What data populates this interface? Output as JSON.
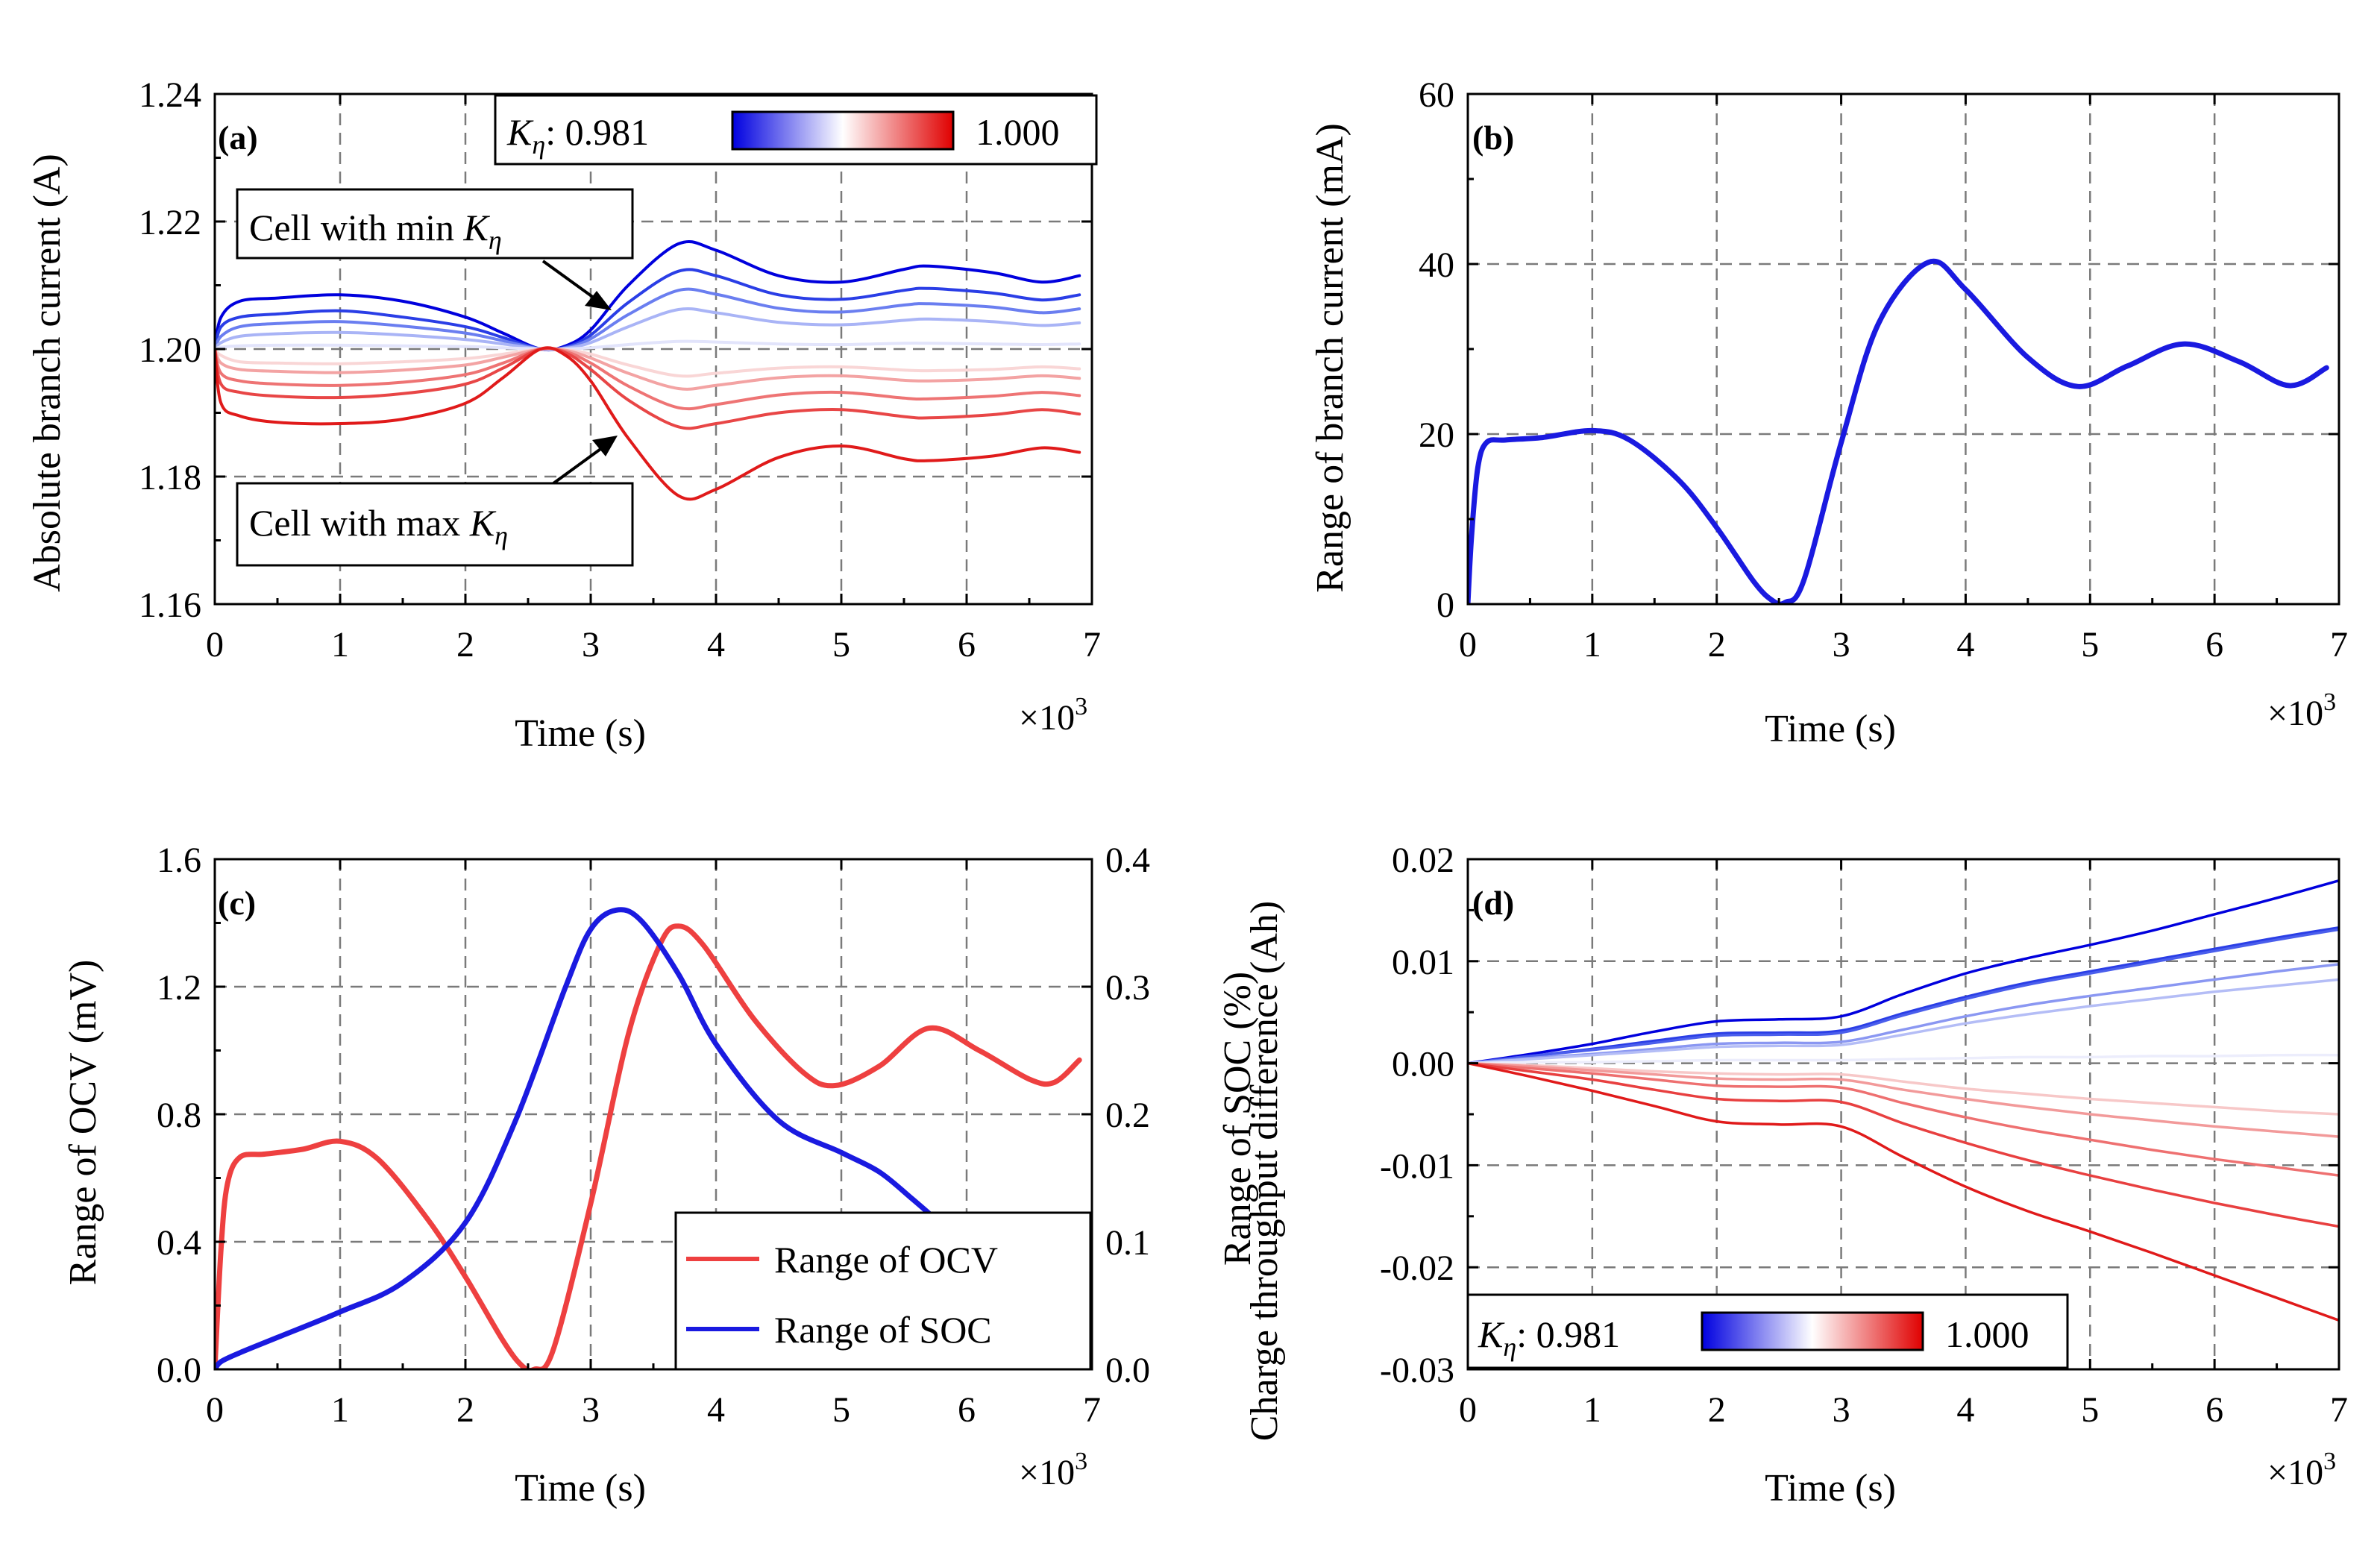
{
  "figure": {
    "panels": [
      {
        "id": "a",
        "tag": "(a)",
        "ylabel": "Absolute branch current (A)",
        "xlabel": "Time (s)",
        "xmult": "×10",
        "xmult_exp": "3",
        "xticks": [
          "0",
          "1",
          "2",
          "3",
          "4",
          "5",
          "6",
          "7"
        ],
        "yticks": [
          "1.16",
          "1.18",
          "1.20",
          "1.22",
          "1.24"
        ],
        "colorbar": {
          "symbol": "K",
          "subscript": "η",
          "min_label": ": 0.981",
          "max_label": "1.000"
        },
        "annotations": [
          {
            "text": "Cell with min ",
            "symbol": "K",
            "subscript": "η"
          },
          {
            "text": "Cell with max ",
            "symbol": "K",
            "subscript": "η"
          }
        ]
      },
      {
        "id": "b",
        "tag": "(b)",
        "ylabel": "Range of branch current (mA)",
        "xlabel": "Time (s)",
        "xmult": "×10",
        "xmult_exp": "3",
        "xticks": [
          "0",
          "1",
          "2",
          "3",
          "4",
          "5",
          "6",
          "7"
        ],
        "yticks": [
          "0",
          "20",
          "40",
          "60"
        ]
      },
      {
        "id": "c",
        "tag": "(c)",
        "ylabel": "Range of OCV (mV)",
        "ylabel_right": "Range of SOC (%)",
        "xlabel": "Time (s)",
        "xmult": "×10",
        "xmult_exp": "3",
        "xticks": [
          "0",
          "1",
          "2",
          "3",
          "4",
          "5",
          "6",
          "7"
        ],
        "yticks": [
          "0.0",
          "0.4",
          "0.8",
          "1.2",
          "1.6"
        ],
        "yticks_right": [
          "0.0",
          "0.1",
          "0.2",
          "0.3",
          "0.4"
        ],
        "legend": [
          "Range of OCV",
          "Range of SOC"
        ]
      },
      {
        "id": "d",
        "tag": "(d)",
        "ylabel": "Charge throughput difference (Ah)",
        "xlabel": "Time (s)",
        "xmult": "×10",
        "xmult_exp": "3",
        "xticks": [
          "0",
          "1",
          "2",
          "3",
          "4",
          "5",
          "6",
          "7"
        ],
        "yticks": [
          "-0.03",
          "-0.02",
          "-0.01",
          "0.00",
          "0.01",
          "0.02"
        ],
        "colorbar": {
          "symbol": "K",
          "subscript": "η",
          "min_label": ": 0.981",
          "max_label": "1.000"
        }
      }
    ]
  },
  "chart_data": [
    {
      "panel": "a",
      "type": "line",
      "title": "",
      "xlabel": "Time (s)",
      "ylabel": "Absolute branch current (A)",
      "x_unit_multiplier": 1000,
      "xlim": [
        0,
        7
      ],
      "ylim": [
        1.16,
        1.24
      ],
      "grid": true,
      "x": [
        0,
        0.05,
        0.2,
        0.5,
        1.0,
        1.5,
        2.0,
        2.3,
        2.6,
        2.8,
        3.0,
        3.3,
        3.7,
        4.0,
        4.5,
        5.0,
        5.5,
        5.7,
        6.2,
        6.6,
        6.9
      ],
      "series": [
        {
          "name": "Kη = 0.981 (min)",
          "color": "#0000dd",
          "values": [
            1.2,
            1.205,
            1.2075,
            1.208,
            1.2085,
            1.2075,
            1.205,
            1.2025,
            1.2,
            1.2005,
            1.203,
            1.21,
            1.2165,
            1.2155,
            1.2115,
            1.2105,
            1.2125,
            1.213,
            1.212,
            1.2105,
            1.2115
          ]
        },
        {
          "name": "Kη step 2",
          "color": "#2a3ee6",
          "values": [
            1.2,
            1.2035,
            1.205,
            1.2055,
            1.206,
            1.205,
            1.2035,
            1.2018,
            1.2,
            1.2003,
            1.2022,
            1.2073,
            1.2122,
            1.2115,
            1.2085,
            1.2078,
            1.2092,
            1.2095,
            1.2088,
            1.2077,
            1.2085
          ]
        },
        {
          "name": "Kη step 3",
          "color": "#6a7ef0",
          "values": [
            1.2,
            1.202,
            1.2035,
            1.204,
            1.2043,
            1.2036,
            1.2025,
            1.2013,
            1.2,
            1.2002,
            1.2016,
            1.2054,
            1.2092,
            1.2086,
            1.2064,
            1.2058,
            1.2069,
            1.2071,
            1.2066,
            1.2057,
            1.2063
          ]
        },
        {
          "name": "Kη step 4",
          "color": "#a9b4f6",
          "values": [
            1.2,
            1.201,
            1.202,
            1.2024,
            1.2026,
            1.2022,
            1.2015,
            1.2008,
            1.2,
            1.2001,
            1.201,
            1.2035,
            1.2062,
            1.2057,
            1.2042,
            1.2038,
            1.2045,
            1.2047,
            1.2043,
            1.2037,
            1.2041
          ]
        },
        {
          "name": "Kη step 5",
          "color": "#e2e4fb",
          "values": [
            1.2,
            1.2003,
            1.2005,
            1.2006,
            1.2006,
            1.2005,
            1.2004,
            1.2002,
            1.2,
            1.2,
            1.2002,
            1.2007,
            1.2012,
            1.2011,
            1.2008,
            1.2007,
            1.2009,
            1.2009,
            1.2008,
            1.2007,
            1.2008
          ]
        },
        {
          "name": "Kη step 6",
          "color": "#f9d6d6",
          "values": [
            1.2,
            1.199,
            1.198,
            1.1978,
            1.1977,
            1.198,
            1.1985,
            1.1992,
            1.2,
            1.1999,
            1.1992,
            1.1975,
            1.1958,
            1.1962,
            1.197,
            1.1972,
            1.1967,
            1.1966,
            1.1968,
            1.1972,
            1.1969
          ]
        },
        {
          "name": "Kη step 7",
          "color": "#f3a3a3",
          "values": [
            1.2,
            1.1978,
            1.1968,
            1.1965,
            1.1963,
            1.1967,
            1.1975,
            1.1987,
            1.2,
            1.1998,
            1.1986,
            1.1962,
            1.1938,
            1.1943,
            1.1955,
            1.1958,
            1.1951,
            1.195,
            1.1953,
            1.1958,
            1.1954
          ]
        },
        {
          "name": "Kη step 8",
          "color": "#ee7474",
          "values": [
            1.2,
            1.1962,
            1.195,
            1.1945,
            1.1943,
            1.1948,
            1.196,
            1.1978,
            1.2,
            1.1996,
            1.1978,
            1.1942,
            1.1908,
            1.1913,
            1.1928,
            1.1932,
            1.1923,
            1.1922,
            1.1926,
            1.1932,
            1.1927
          ]
        },
        {
          "name": "Kη step 9",
          "color": "#e84646",
          "values": [
            1.2,
            1.1945,
            1.1932,
            1.1926,
            1.1924,
            1.193,
            1.1945,
            1.197,
            1.2,
            1.1994,
            1.1968,
            1.192,
            1.1878,
            1.1883,
            1.19,
            1.1905,
            1.1894,
            1.1892,
            1.1897,
            1.1905,
            1.1898
          ]
        },
        {
          "name": "Kη = 1.000 (max)",
          "color": "#e01a1a",
          "values": [
            1.2,
            1.1915,
            1.1895,
            1.1885,
            1.1883,
            1.189,
            1.1915,
            1.1955,
            1.2,
            1.199,
            1.195,
            1.186,
            1.177,
            1.178,
            1.183,
            1.1848,
            1.1828,
            1.1825,
            1.1832,
            1.1845,
            1.1838
          ]
        }
      ]
    },
    {
      "panel": "b",
      "type": "line",
      "title": "",
      "xlabel": "Time (s)",
      "ylabel": "Range of branch current (mA)",
      "x_unit_multiplier": 1000,
      "xlim": [
        0,
        7
      ],
      "ylim": [
        0,
        60
      ],
      "grid": true,
      "x": [
        0,
        0.03,
        0.08,
        0.15,
        0.3,
        0.6,
        1.0,
        1.3,
        1.7,
        2.0,
        2.3,
        2.45,
        2.55,
        2.7,
        3.0,
        3.3,
        3.7,
        4.0,
        4.5,
        4.9,
        5.3,
        5.75,
        6.2,
        6.6,
        6.9
      ],
      "series": [
        {
          "name": "Range of branch current",
          "color": "#1a1ae0",
          "values": [
            0,
            8,
            16,
            19,
            19.3,
            19.6,
            20.4,
            19.3,
            14.5,
            9.0,
            2.6,
            0.4,
            0.2,
            2.8,
            19.0,
            33.0,
            40.2,
            37.0,
            29.0,
            25.6,
            28.0,
            30.6,
            28.5,
            25.7,
            27.8
          ]
        }
      ]
    },
    {
      "panel": "c",
      "type": "line",
      "title": "",
      "xlabel": "Time (s)",
      "ylabel": "Range of OCV (mV)",
      "ylabel_right": "Range of SOC (%)",
      "x_unit_multiplier": 1000,
      "xlim": [
        0,
        7
      ],
      "ylim": [
        0,
        1.6
      ],
      "ylim_right": [
        0,
        0.4
      ],
      "grid": true,
      "legend": "bottom-right",
      "series": [
        {
          "name": "Range of OCV",
          "axis": "left",
          "color": "#ee4040",
          "x": [
            0,
            0.05,
            0.1,
            0.2,
            0.4,
            0.7,
            1.0,
            1.3,
            1.7,
            2.0,
            2.3,
            2.45,
            2.55,
            2.7,
            3.0,
            3.3,
            3.55,
            3.7,
            3.9,
            4.3,
            4.7,
            4.95,
            5.3,
            5.7,
            6.1,
            6.5,
            6.7,
            6.9
          ],
          "values": [
            0,
            0.38,
            0.58,
            0.665,
            0.675,
            0.69,
            0.715,
            0.66,
            0.47,
            0.29,
            0.09,
            0.012,
            0.0,
            0.06,
            0.52,
            1.05,
            1.33,
            1.39,
            1.33,
            1.1,
            0.93,
            0.89,
            0.95,
            1.07,
            1.0,
            0.91,
            0.9,
            0.97
          ]
        },
        {
          "name": "Range of SOC",
          "axis": "right",
          "color": "#1a1ae0",
          "x": [
            0,
            0.05,
            0.2,
            0.5,
            1.0,
            1.5,
            2.0,
            2.4,
            2.8,
            3.0,
            3.2,
            3.4,
            3.7,
            4.0,
            4.5,
            5.0,
            5.3,
            5.55,
            5.75
          ],
          "values": [
            0,
            0.006,
            0.013,
            0.025,
            0.045,
            0.068,
            0.115,
            0.195,
            0.3,
            0.345,
            0.36,
            0.352,
            0.31,
            0.255,
            0.195,
            0.17,
            0.155,
            0.135,
            0.118
          ]
        }
      ]
    },
    {
      "panel": "d",
      "type": "line",
      "title": "",
      "xlabel": "Time (s)",
      "ylabel": "Charge throughput difference (Ah)",
      "x_unit_multiplier": 1000,
      "xlim": [
        0,
        7
      ],
      "ylim": [
        -0.03,
        0.02
      ],
      "grid": true,
      "x": [
        0,
        0.5,
        1.0,
        1.5,
        2.0,
        2.5,
        3.0,
        3.5,
        4.0,
        4.5,
        5.0,
        5.5,
        6.0,
        6.5,
        7.0
      ],
      "series": [
        {
          "name": "Kη = 0.981 (min)",
          "color": "#0000dd",
          "values": [
            0,
            0.0009,
            0.0019,
            0.0031,
            0.0041,
            0.0043,
            0.0046,
            0.0068,
            0.0088,
            0.0103,
            0.0116,
            0.013,
            0.0146,
            0.0162,
            0.0179
          ]
        },
        {
          "name": "Kη step 2",
          "color": "#2a3ee6",
          "values": [
            0,
            0.0007,
            0.0014,
            0.0022,
            0.0029,
            0.003,
            0.0032,
            0.0049,
            0.0065,
            0.0079,
            0.009,
            0.0101,
            0.0112,
            0.0123,
            0.0133
          ]
        },
        {
          "name": "Kη step 3",
          "color": "#4a5eec",
          "values": [
            0,
            0.0007,
            0.0013,
            0.002,
            0.0027,
            0.0028,
            0.003,
            0.0047,
            0.0063,
            0.0077,
            0.0088,
            0.0099,
            0.011,
            0.0121,
            0.0131
          ]
        },
        {
          "name": "Kη step 4",
          "color": "#8a97f2",
          "values": [
            0,
            0.0005,
            0.0009,
            0.0014,
            0.0019,
            0.002,
            0.0021,
            0.0033,
            0.0046,
            0.0057,
            0.0066,
            0.0074,
            0.0082,
            0.009,
            0.0097
          ]
        },
        {
          "name": "Kη step 5",
          "color": "#b4bdf6",
          "values": [
            0,
            0.0004,
            0.0008,
            0.0012,
            0.0016,
            0.0017,
            0.0018,
            0.0028,
            0.0039,
            0.0048,
            0.0056,
            0.0063,
            0.007,
            0.0076,
            0.0082
          ]
        },
        {
          "name": "Kη step 6",
          "color": "#ecedfc",
          "values": [
            0,
            0.0001,
            0.0001,
            0.0002,
            0.0003,
            0.0003,
            0.0003,
            0.0004,
            0.0005,
            0.0006,
            0.0006,
            0.0007,
            0.0007,
            0.0008,
            0.0008
          ]
        },
        {
          "name": "Kη step 7",
          "color": "#f7c8c8",
          "values": [
            0,
            -0.0002,
            -0.0005,
            -0.0008,
            -0.001,
            -0.0011,
            -0.0011,
            -0.0018,
            -0.0025,
            -0.003,
            -0.0035,
            -0.0039,
            -0.0043,
            -0.0047,
            -0.005
          ]
        },
        {
          "name": "Kη step 8",
          "color": "#f29a9a",
          "values": [
            0,
            -0.0003,
            -0.0007,
            -0.0011,
            -0.0015,
            -0.0016,
            -0.0016,
            -0.0026,
            -0.0035,
            -0.0043,
            -0.005,
            -0.0056,
            -0.0062,
            -0.0067,
            -0.0072
          ]
        },
        {
          "name": "Kη step 9",
          "color": "#ee7070",
          "values": [
            0,
            -0.0005,
            -0.001,
            -0.0016,
            -0.0022,
            -0.0023,
            -0.0024,
            -0.0039,
            -0.0053,
            -0.0065,
            -0.0075,
            -0.0085,
            -0.0094,
            -0.0102,
            -0.011
          ]
        },
        {
          "name": "Kη step 10",
          "color": "#e84040",
          "values": [
            0,
            -0.0008,
            -0.0016,
            -0.0026,
            -0.0035,
            -0.0037,
            -0.0038,
            -0.0059,
            -0.0078,
            -0.0095,
            -0.011,
            -0.0124,
            -0.0137,
            -0.0149,
            -0.016
          ]
        },
        {
          "name": "Kη = 1.000 (max)",
          "color": "#e01a1a",
          "values": [
            0,
            -0.0013,
            -0.0027,
            -0.0042,
            -0.0057,
            -0.006,
            -0.0062,
            -0.0092,
            -0.0121,
            -0.0145,
            -0.0165,
            -0.0186,
            -0.0208,
            -0.023,
            -0.0252
          ]
        }
      ]
    }
  ]
}
